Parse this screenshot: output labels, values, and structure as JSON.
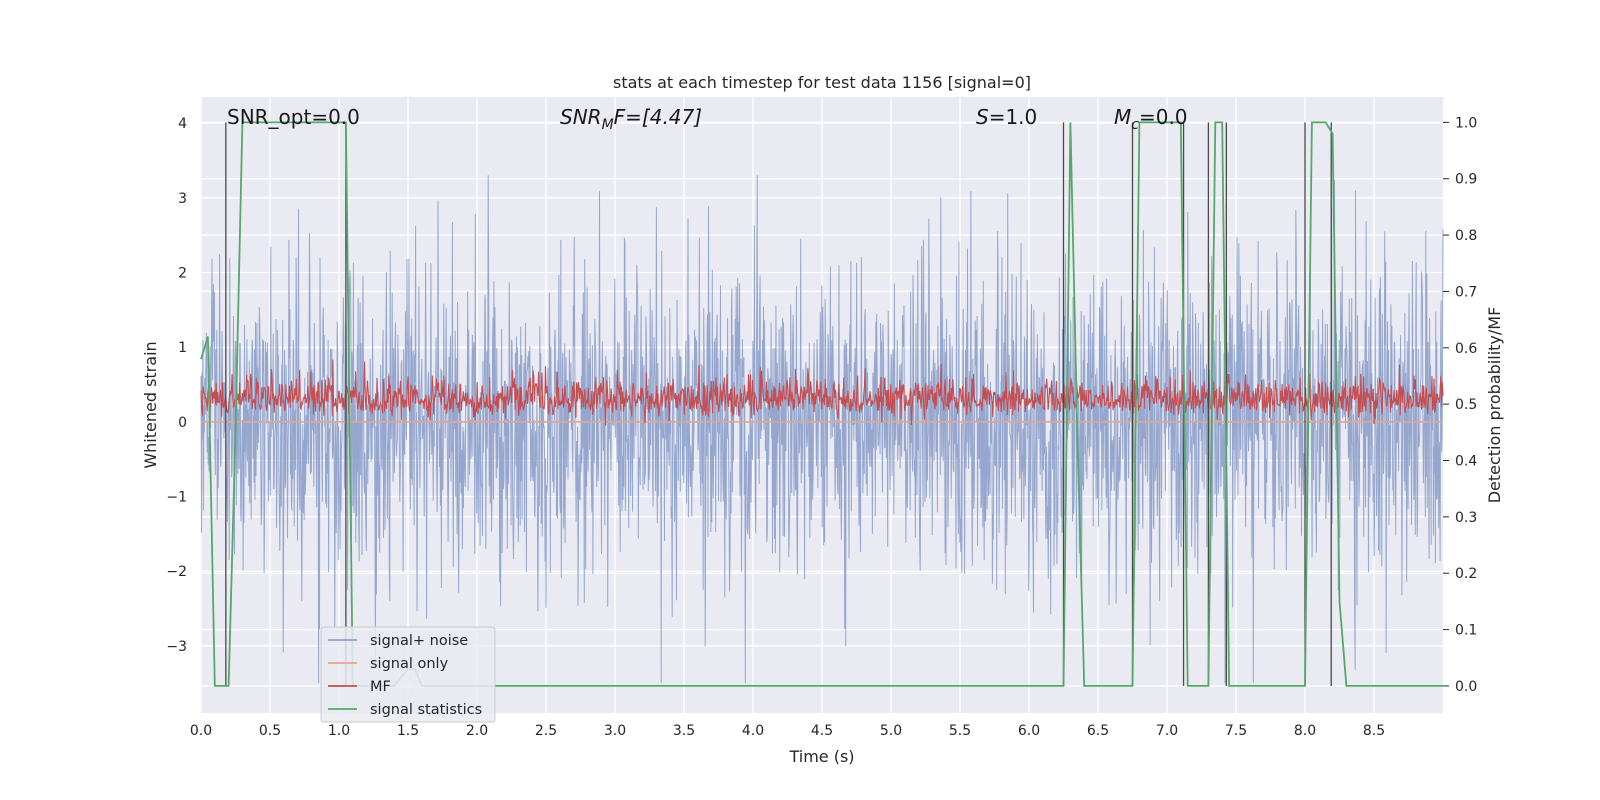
{
  "chart_data": {
    "type": "line",
    "title": "stats at each timestep for test data 1156 [signal=0]",
    "xlabel": "Time (s)",
    "ylabel_left": "Whitened strain",
    "ylabel_right": "Detection probability/MF",
    "xlim": [
      0.0,
      9.0
    ],
    "ylim_left": [
      -3.9,
      4.35
    ],
    "ylim_right": [
      -0.048,
      1.045
    ],
    "x_ticks": [
      "0.0",
      "0.5",
      "1.0",
      "1.5",
      "2.0",
      "2.5",
      "3.0",
      "3.5",
      "4.0",
      "4.5",
      "5.0",
      "5.5",
      "6.0",
      "6.5",
      "7.0",
      "7.5",
      "8.0",
      "8.5"
    ],
    "y_ticks_left": [
      "−3",
      "−2",
      "−1",
      "0",
      "1",
      "2",
      "3",
      "4"
    ],
    "y_ticks_right": [
      "0.0",
      "0.1",
      "0.2",
      "0.3",
      "0.4",
      "0.5",
      "0.6",
      "0.7",
      "0.8",
      "0.9",
      "1.0"
    ],
    "grid": true,
    "legend_placement": "lower-left",
    "annotations": {
      "snr_opt": "SNR_opt=0.0",
      "snr_mf_main": "SNR",
      "snr_mf_sub": "M",
      "snr_mf_rest": "F=[4.47]",
      "s_main": "S",
      "s_rest": "=1.0",
      "mc_main": "M",
      "mc_sub": "c",
      "mc_rest": "=0.0"
    },
    "series": [
      {
        "name": "signal+ noise",
        "color": "#8da0cb",
        "noise_min": -3.5,
        "noise_max": 3.3,
        "typical_range": [
          -2.0,
          2.0
        ]
      },
      {
        "name": "signal only",
        "color": "#e8a48a",
        "value": 0.0
      },
      {
        "name": "MF",
        "color": "#c44e52",
        "noise_min": -0.05,
        "noise_max": 1.0,
        "typical_range": [
          0.05,
          0.6
        ]
      },
      {
        "name": "signal statistics",
        "color": "#55a868",
        "x": [
          0.0,
          0.05,
          0.1,
          0.15,
          0.2,
          0.25,
          0.3,
          0.5,
          0.8,
          1.0,
          1.05,
          1.1,
          1.15,
          1.2,
          1.4,
          1.5,
          1.55,
          1.6,
          2.0,
          3.0,
          4.0,
          5.0,
          6.0,
          6.2,
          6.25,
          6.3,
          6.35,
          6.4,
          6.45,
          6.7,
          6.75,
          6.8,
          7.0,
          7.1,
          7.15,
          7.2,
          7.3,
          7.35,
          7.4,
          7.45,
          7.5,
          7.9,
          8.0,
          8.05,
          8.1,
          8.15,
          8.2,
          8.25,
          8.3,
          8.35,
          8.5,
          8.75,
          9.0
        ],
        "y": [
          0.58,
          0.62,
          0.0,
          0.0,
          0.0,
          0.45,
          1.0,
          1.0,
          1.0,
          1.0,
          1.0,
          0.0,
          0.0,
          0.0,
          0.0,
          0.03,
          0.03,
          0.0,
          0.0,
          0.0,
          0.0,
          0.0,
          0.0,
          0.0,
          0.0,
          1.0,
          0.45,
          0.0,
          0.0,
          0.0,
          0.0,
          1.0,
          1.0,
          1.0,
          0.0,
          0.0,
          0.0,
          1.0,
          1.0,
          0.0,
          0.0,
          0.0,
          0.0,
          1.0,
          1.0,
          1.0,
          0.98,
          0.15,
          0.0,
          0.0,
          0.0,
          0.0,
          0.0
        ]
      },
      {
        "name": "",
        "color": "#4a4a4a",
        "type": "vlines",
        "x": [
          0.18,
          1.05,
          6.25,
          6.75,
          7.12,
          7.3,
          7.43,
          8.0,
          8.19
        ],
        "y_top": 1.0
      }
    ]
  }
}
